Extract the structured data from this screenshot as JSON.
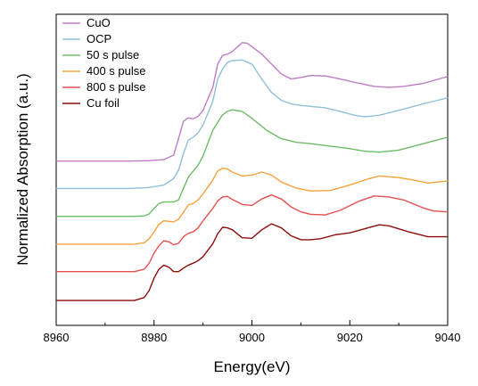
{
  "chart_data": {
    "type": "line",
    "title": "",
    "xlabel": "Energy(eV)",
    "ylabel": "Normalized Absorption (a.u.)",
    "xlim": [
      8960,
      9040
    ],
    "x_ticks": [
      "8960",
      "8980",
      "9000",
      "9020",
      "9040"
    ],
    "y_ticks": [],
    "y_units": "normalized absorption, stacked with vertical offsets",
    "grid": false,
    "legend_position": "top-left",
    "series": [
      {
        "name": "CuO",
        "color": "#c07cc7",
        "points": [
          [
            8960,
            0.9
          ],
          [
            8975,
            0.9
          ],
          [
            8979,
            0.91
          ],
          [
            8982,
            0.93
          ],
          [
            8984,
            1.02
          ],
          [
            8985,
            1.35
          ],
          [
            8986,
            1.7
          ],
          [
            8987,
            1.77
          ],
          [
            8988,
            1.75
          ],
          [
            8989,
            1.8
          ],
          [
            8990,
            1.92
          ],
          [
            8992,
            2.38
          ],
          [
            8993,
            2.85
          ],
          [
            8994,
            3.02
          ],
          [
            8995,
            3.05
          ],
          [
            8996,
            3.1
          ],
          [
            8998,
            3.28
          ],
          [
            8999,
            3.27
          ],
          [
            9000,
            3.2
          ],
          [
            9002,
            3.05
          ],
          [
            9004,
            2.85
          ],
          [
            9006,
            2.65
          ],
          [
            9008,
            2.55
          ],
          [
            9010,
            2.58
          ],
          [
            9012,
            2.62
          ],
          [
            9015,
            2.61
          ],
          [
            9018,
            2.55
          ],
          [
            9022,
            2.46
          ],
          [
            9025,
            2.4
          ],
          [
            9028,
            2.38
          ],
          [
            9031,
            2.4
          ],
          [
            9035,
            2.46
          ],
          [
            9040,
            2.6
          ]
        ]
      },
      {
        "name": "OCP",
        "color": "#8fbfd9",
        "points": [
          [
            8960,
            0.35
          ],
          [
            8975,
            0.35
          ],
          [
            8979,
            0.37
          ],
          [
            8982,
            0.42
          ],
          [
            8984,
            0.55
          ],
          [
            8985,
            0.72
          ],
          [
            8986,
            1.05
          ],
          [
            8987,
            1.32
          ],
          [
            8988,
            1.38
          ],
          [
            8989,
            1.47
          ],
          [
            8990,
            1.62
          ],
          [
            8992,
            2.1
          ],
          [
            8993,
            2.55
          ],
          [
            8994,
            2.75
          ],
          [
            8995,
            2.88
          ],
          [
            8996,
            2.92
          ],
          [
            8998,
            2.93
          ],
          [
            9000,
            2.85
          ],
          [
            9002,
            2.55
          ],
          [
            9004,
            2.28
          ],
          [
            9006,
            2.12
          ],
          [
            9008,
            2.05
          ],
          [
            9010,
            2.02
          ],
          [
            9012,
            2.0
          ],
          [
            9015,
            1.97
          ],
          [
            9018,
            1.9
          ],
          [
            9021,
            1.82
          ],
          [
            9023,
            1.79
          ],
          [
            9026,
            1.82
          ],
          [
            9030,
            1.92
          ],
          [
            9035,
            2.05
          ],
          [
            9040,
            2.17
          ]
        ]
      },
      {
        "name": "50 s pulse",
        "color": "#6cbd66",
        "points": [
          [
            8960,
            -0.21
          ],
          [
            8976,
            -0.21
          ],
          [
            8978,
            -0.2
          ],
          [
            8979,
            -0.16
          ],
          [
            8980,
            -0.05
          ],
          [
            8981,
            0.05
          ],
          [
            8982,
            0.08
          ],
          [
            8983,
            0.08
          ],
          [
            8984,
            0.08
          ],
          [
            8985,
            0.12
          ],
          [
            8986,
            0.35
          ],
          [
            8987,
            0.58
          ],
          [
            8988,
            0.7
          ],
          [
            8989,
            0.82
          ],
          [
            8990,
            1.0
          ],
          [
            8992,
            1.52
          ],
          [
            8994,
            1.83
          ],
          [
            8995,
            1.9
          ],
          [
            8996,
            1.93
          ],
          [
            8998,
            1.9
          ],
          [
            9000,
            1.76
          ],
          [
            9003,
            1.52
          ],
          [
            9006,
            1.35
          ],
          [
            9009,
            1.28
          ],
          [
            9012,
            1.25
          ],
          [
            9016,
            1.2
          ],
          [
            9020,
            1.15
          ],
          [
            9023,
            1.1
          ],
          [
            9026,
            1.08
          ],
          [
            9030,
            1.12
          ],
          [
            9035,
            1.25
          ],
          [
            9040,
            1.38
          ]
        ]
      },
      {
        "name": "400 s pulse",
        "color": "#f7a23b",
        "points": [
          [
            8960,
            -0.77
          ],
          [
            8976,
            -0.77
          ],
          [
            8978,
            -0.74
          ],
          [
            8979,
            -0.66
          ],
          [
            8980,
            -0.52
          ],
          [
            8981,
            -0.37
          ],
          [
            8982,
            -0.3
          ],
          [
            8983,
            -0.31
          ],
          [
            8984,
            -0.32
          ],
          [
            8985,
            -0.27
          ],
          [
            8986,
            -0.13
          ],
          [
            8987,
            0.02
          ],
          [
            8988,
            0.05
          ],
          [
            8989,
            0.12
          ],
          [
            8990,
            0.24
          ],
          [
            8992,
            0.52
          ],
          [
            8993,
            0.7
          ],
          [
            8994,
            0.76
          ],
          [
            8995,
            0.74
          ],
          [
            8996,
            0.68
          ],
          [
            8998,
            0.6
          ],
          [
            9000,
            0.62
          ],
          [
            9002,
            0.68
          ],
          [
            9004,
            0.62
          ],
          [
            9006,
            0.48
          ],
          [
            9009,
            0.36
          ],
          [
            9012,
            0.3
          ],
          [
            9016,
            0.31
          ],
          [
            9020,
            0.42
          ],
          [
            9024,
            0.55
          ],
          [
            9026,
            0.6
          ],
          [
            9030,
            0.57
          ],
          [
            9033,
            0.52
          ],
          [
            9036,
            0.46
          ],
          [
            9040,
            0.5
          ]
        ]
      },
      {
        "name": "800 s pulse",
        "color": "#e4504f",
        "points": [
          [
            8960,
            -1.32
          ],
          [
            8976,
            -1.32
          ],
          [
            8978,
            -1.27
          ],
          [
            8979,
            -1.15
          ],
          [
            8980,
            -0.95
          ],
          [
            8981,
            -0.8
          ],
          [
            8982,
            -0.7
          ],
          [
            8983,
            -0.72
          ],
          [
            8984,
            -0.78
          ],
          [
            8985,
            -0.75
          ],
          [
            8986,
            -0.62
          ],
          [
            8987,
            -0.55
          ],
          [
            8988,
            -0.52
          ],
          [
            8989,
            -0.44
          ],
          [
            8990,
            -0.3
          ],
          [
            8992,
            -0.05
          ],
          [
            8993,
            0.1
          ],
          [
            8994,
            0.18
          ],
          [
            8995,
            0.19
          ],
          [
            8996,
            0.13
          ],
          [
            8998,
            0.03
          ],
          [
            9000,
            0.01
          ],
          [
            9002,
            0.14
          ],
          [
            9004,
            0.22
          ],
          [
            9006,
            0.14
          ],
          [
            9008,
            -0.02
          ],
          [
            9010,
            -0.12
          ],
          [
            9012,
            -0.17
          ],
          [
            9015,
            -0.18
          ],
          [
            9018,
            -0.09
          ],
          [
            9022,
            0.1
          ],
          [
            9025,
            0.2
          ],
          [
            9028,
            0.18
          ],
          [
            9031,
            0.12
          ],
          [
            9035,
            -0.04
          ],
          [
            9037,
            -0.1
          ],
          [
            9040,
            -0.12
          ]
        ]
      },
      {
        "name": "Cu foil",
        "color": "#8b0d0d",
        "points": [
          [
            8960,
            -1.9
          ],
          [
            8976,
            -1.9
          ],
          [
            8978,
            -1.84
          ],
          [
            8979,
            -1.7
          ],
          [
            8980,
            -1.45
          ],
          [
            8981,
            -1.27
          ],
          [
            8982,
            -1.19
          ],
          [
            8983,
            -1.23
          ],
          [
            8984,
            -1.32
          ],
          [
            8985,
            -1.32
          ],
          [
            8986,
            -1.25
          ],
          [
            8987,
            -1.19
          ],
          [
            8988,
            -1.15
          ],
          [
            8989,
            -1.1
          ],
          [
            8990,
            -1.02
          ],
          [
            8992,
            -0.76
          ],
          [
            8993,
            -0.56
          ],
          [
            8994,
            -0.43
          ],
          [
            8995,
            -0.44
          ],
          [
            8996,
            -0.48
          ],
          [
            8998,
            -0.64
          ],
          [
            9000,
            -0.65
          ],
          [
            9002,
            -0.48
          ],
          [
            9004,
            -0.36
          ],
          [
            9006,
            -0.44
          ],
          [
            9008,
            -0.6
          ],
          [
            9010,
            -0.68
          ],
          [
            9012,
            -0.68
          ],
          [
            9014,
            -0.66
          ],
          [
            9017,
            -0.58
          ],
          [
            9020,
            -0.54
          ],
          [
            9023,
            -0.46
          ],
          [
            9026,
            -0.38
          ],
          [
            9028,
            -0.4
          ],
          [
            9032,
            -0.52
          ],
          [
            9036,
            -0.62
          ],
          [
            9040,
            -0.62
          ]
        ]
      }
    ]
  }
}
